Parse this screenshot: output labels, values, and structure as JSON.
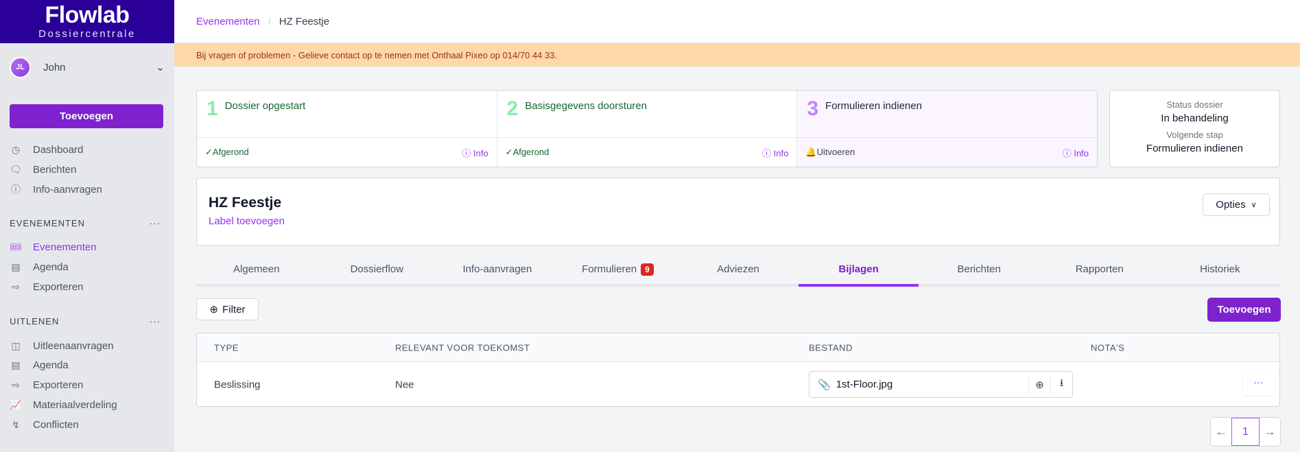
{
  "brand": {
    "name": "Flowlab",
    "subtitle": "Dossiercentrale",
    "header_color": "#2a0099",
    "accent": "#7e22ce"
  },
  "user": {
    "initials": "JL",
    "name": "John"
  },
  "sidebar": {
    "add_label": "Toevoegen",
    "main": [
      {
        "icon": "dashboard-icon",
        "label": "Dashboard"
      },
      {
        "icon": "chat-icon",
        "label": "Berichten"
      },
      {
        "icon": "info-icon",
        "label": "Info-aanvragen"
      }
    ],
    "sections": [
      {
        "title": "EVENEMENTEN",
        "items": [
          {
            "icon": "ticket-icon",
            "label": "Evenementen",
            "active": true
          },
          {
            "icon": "calendar-icon",
            "label": "Agenda"
          },
          {
            "icon": "export-icon",
            "label": "Exporteren"
          }
        ]
      },
      {
        "title": "UITLENEN",
        "items": [
          {
            "icon": "hand-box-icon",
            "label": "Uitleenaanvragen"
          },
          {
            "icon": "calendar-icon",
            "label": "Agenda"
          },
          {
            "icon": "export-icon",
            "label": "Exporteren"
          },
          {
            "icon": "chart-icon",
            "label": "Materiaalverdeling"
          },
          {
            "icon": "bolt-icon",
            "label": "Conflicten"
          }
        ]
      }
    ]
  },
  "breadcrumb": [
    "Evenementen",
    "HZ Feestje"
  ],
  "banner": "Bij vragen of problemen - Gelieve contact op te nemen met Onthaal Pixeo op 014/70 44 33.",
  "steps": [
    {
      "num": "1",
      "title": "Dossier opgestart",
      "status": "Afgerond",
      "info": "Info"
    },
    {
      "num": "2",
      "title": "Basisgegevens doorsturen",
      "status": "Afgerond",
      "info": "Info"
    },
    {
      "num": "3",
      "title": "Formulieren indienen",
      "status": "Uitvoeren",
      "info": "Info"
    }
  ],
  "status": {
    "label1": "Status dossier",
    "value1": "In behandeling",
    "label2": "Volgende stap",
    "value2": "Formulieren indienen"
  },
  "dossier": {
    "title": "HZ Feestje",
    "add_label": "Label toevoegen",
    "options": "Opties"
  },
  "tabs": [
    {
      "label": "Algemeen"
    },
    {
      "label": "Dossierflow"
    },
    {
      "label": "Info-aanvragen"
    },
    {
      "label": "Formulieren",
      "badge": "9"
    },
    {
      "label": "Adviezen"
    },
    {
      "label": "Bijlagen",
      "active": true
    },
    {
      "label": "Berichten"
    },
    {
      "label": "Rapporten"
    },
    {
      "label": "Historiek"
    }
  ],
  "toolbar": {
    "filter": "Filter",
    "add": "Toevoegen"
  },
  "table": {
    "headers": [
      "TYPE",
      "RELEVANT VOOR TOEKOMST",
      "BESTAND",
      "NOTA'S"
    ],
    "rows": [
      {
        "type": "Beslissing",
        "relevant": "Nee",
        "file": "1st-Floor.jpg",
        "notes": ""
      }
    ]
  },
  "pagination": {
    "current": "1"
  }
}
